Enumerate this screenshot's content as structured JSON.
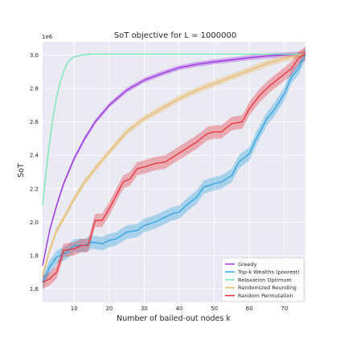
{
  "chart_data": {
    "type": "line",
    "title": "SoT objective for L = 1000000",
    "xlabel": "Number of bailed-out nodes k",
    "ylabel": "SoT",
    "y_offset_label": "1e6",
    "xlim": [
      1,
      76
    ],
    "ylim": [
      1.52,
      3.08
    ],
    "x_ticks": [
      10,
      20,
      30,
      40,
      50,
      60,
      70
    ],
    "y_ticks": [
      1.6,
      1.8,
      2.0,
      2.2,
      2.4,
      2.6,
      2.8,
      3.0
    ],
    "grid": true,
    "legend_position": "lower-right",
    "series": [
      {
        "name": "Greedy",
        "color": "#9b30e0",
        "x": [
          1,
          3,
          5,
          7,
          10,
          13,
          16,
          20,
          25,
          30,
          35,
          40,
          45,
          50,
          55,
          60,
          65,
          70,
          73,
          76
        ],
        "y": [
          1.74,
          1.95,
          2.1,
          2.23,
          2.38,
          2.5,
          2.6,
          2.7,
          2.79,
          2.85,
          2.89,
          2.925,
          2.945,
          2.96,
          2.972,
          2.985,
          2.995,
          3.002,
          3.005,
          3.01
        ],
        "band": 0.015
      },
      {
        "name": "Top-k Wealths (poorest)",
        "color": "#2aa3e0",
        "x": [
          1,
          3,
          5,
          8,
          10,
          13,
          15,
          18,
          20,
          22,
          25,
          28,
          30,
          33,
          35,
          38,
          40,
          42,
          45,
          47,
          50,
          52,
          55,
          57,
          60,
          62,
          65,
          67,
          70,
          72,
          74,
          76
        ],
        "y": [
          1.64,
          1.73,
          1.79,
          1.82,
          1.86,
          1.86,
          1.88,
          1.87,
          1.89,
          1.9,
          1.94,
          1.95,
          1.98,
          2.0,
          2.02,
          2.05,
          2.06,
          2.1,
          2.15,
          2.21,
          2.23,
          2.24,
          2.28,
          2.36,
          2.41,
          2.5,
          2.62,
          2.67,
          2.77,
          2.87,
          2.92,
          3.01
        ],
        "band": 0.04
      },
      {
        "name": "Relaxation Optimum",
        "color": "#6ee8b0",
        "x": [
          1,
          2,
          3,
          4,
          5,
          6,
          7,
          8,
          9,
          10,
          12,
          14,
          16,
          20,
          30,
          40,
          50,
          60,
          70,
          76
        ],
        "y": [
          2.1,
          2.3,
          2.48,
          2.63,
          2.75,
          2.84,
          2.9,
          2.95,
          2.975,
          2.99,
          3.0,
          3.005,
          3.006,
          3.006,
          3.006,
          3.006,
          3.006,
          3.006,
          3.006,
          3.006
        ],
        "band": 0
      },
      {
        "name": "Randomized Rounding",
        "color": "#e8b968",
        "x": [
          1,
          3,
          5,
          8,
          10,
          13,
          16,
          20,
          25,
          30,
          35,
          40,
          45,
          50,
          55,
          60,
          65,
          70,
          73,
          76
        ],
        "y": [
          1.68,
          1.83,
          1.95,
          2.06,
          2.14,
          2.24,
          2.32,
          2.42,
          2.54,
          2.62,
          2.68,
          2.74,
          2.79,
          2.83,
          2.87,
          2.91,
          2.95,
          2.98,
          2.995,
          3.01
        ],
        "band": 0.02
      },
      {
        "name": "Random Permutation",
        "color": "#e8303a",
        "x": [
          1,
          3,
          5,
          7,
          10,
          12,
          14,
          16,
          18,
          20,
          22,
          24,
          26,
          28,
          30,
          33,
          36,
          39,
          42,
          45,
          48,
          50,
          52,
          55,
          58,
          60,
          63,
          66,
          69,
          72,
          74,
          76
        ],
        "y": [
          1.64,
          1.66,
          1.7,
          1.83,
          1.84,
          1.86,
          1.86,
          2.01,
          2.01,
          2.08,
          2.16,
          2.24,
          2.26,
          2.32,
          2.33,
          2.35,
          2.36,
          2.4,
          2.44,
          2.48,
          2.53,
          2.54,
          2.54,
          2.59,
          2.6,
          2.68,
          2.76,
          2.82,
          2.87,
          2.92,
          2.98,
          3.01
        ],
        "band": 0.04
      }
    ]
  }
}
